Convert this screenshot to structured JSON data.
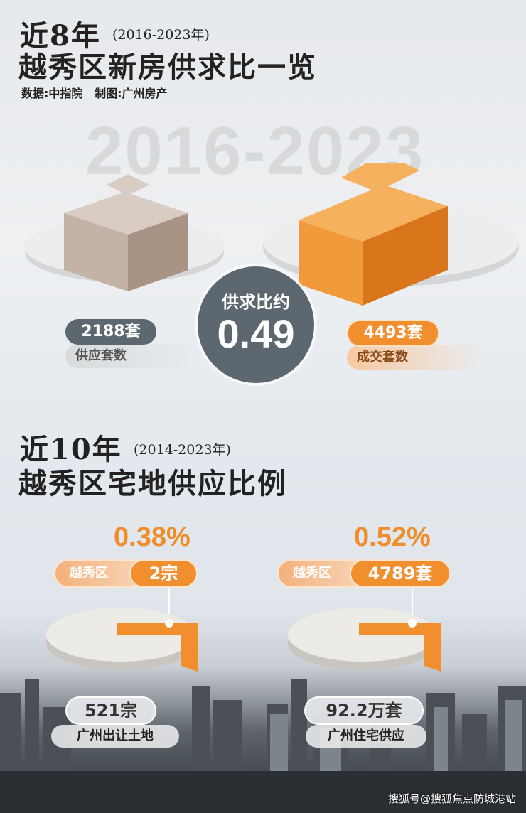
{
  "section1": {
    "title_prefix": "近8年",
    "year_range": "(2016-2023年)",
    "title": "越秀区新房供求比一览",
    "source": "数据:中指院   制图:广州房产",
    "watermark": "2016-2023",
    "supply": {
      "value": "2188套",
      "label": "供应套数"
    },
    "ratio": {
      "label": "供求比约",
      "value": "0.49"
    },
    "deals": {
      "value": "4493套",
      "label": "成交套数"
    }
  },
  "section2": {
    "title_prefix": "近10年",
    "year_range": "(2014-2023年)",
    "title": "越秀区宅地供应比例",
    "left": {
      "percent": "0.38%",
      "district": "越秀区",
      "district_value": "2宗",
      "total": "521宗",
      "total_label": "广州出让土地",
      "share": 0.38
    },
    "right": {
      "percent": "0.52%",
      "district": "越秀区",
      "district_value": "4789套",
      "total": "92.2万套",
      "total_label": "广州住宅供应",
      "share": 0.52
    }
  },
  "credit": "搜狐号@搜狐焦点防城港站",
  "colors": {
    "orange": "#f18f2f",
    "grey": "#5d6770",
    "beige": "#c9b7ab"
  }
}
